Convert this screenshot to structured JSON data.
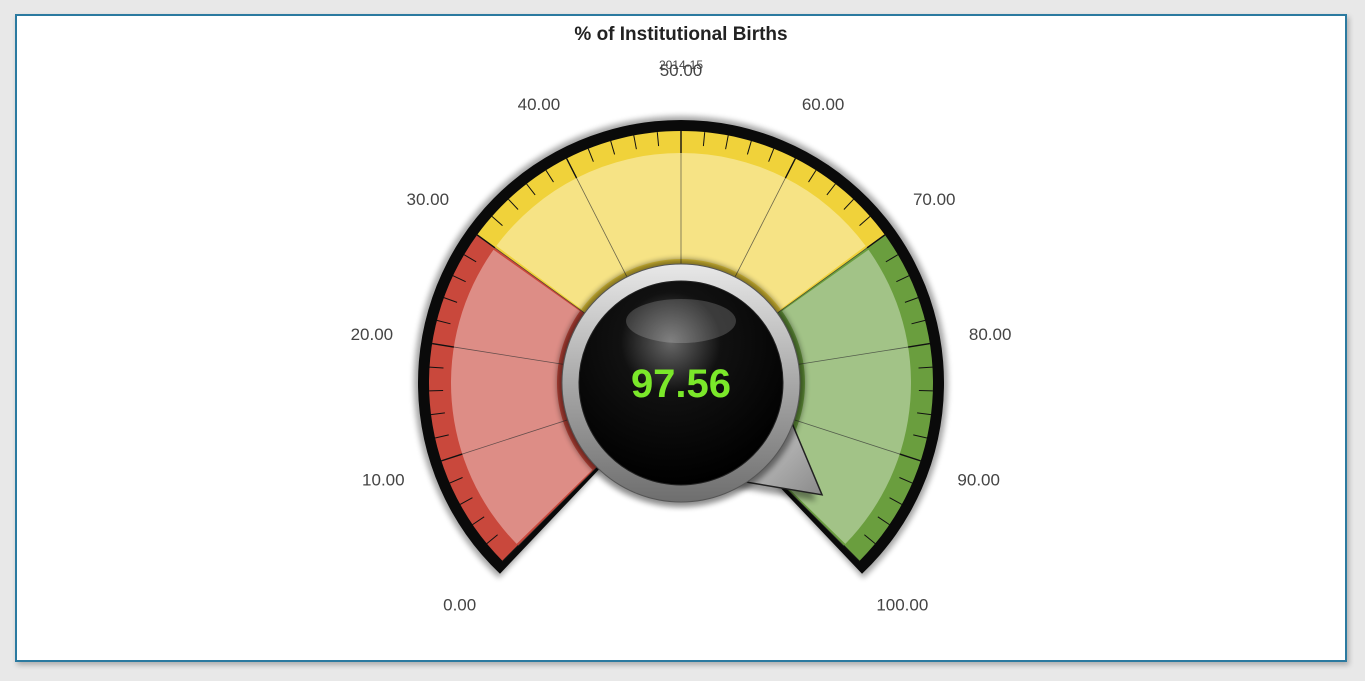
{
  "header": {
    "title": "% of Institutional Births",
    "subtitle": "2014-15"
  },
  "chart_data": {
    "type": "gauge",
    "title": "% of Institutional Births",
    "subtitle": "2014-15",
    "value": 97.56,
    "value_label": "97.56",
    "min": 0,
    "max": 100,
    "tick_labels": [
      "0.00",
      "10.00",
      "20.00",
      "30.00",
      "40.00",
      "50.00",
      "60.00",
      "70.00",
      "80.00",
      "90.00",
      "100.00"
    ],
    "ranges": [
      {
        "from": 0,
        "to": 30,
        "color": "#c9483c"
      },
      {
        "from": 30,
        "to": 70,
        "color": "#f0d23a"
      },
      {
        "from": 70,
        "to": 100,
        "color": "#6a9e3e"
      }
    ],
    "value_color": "#7be82a"
  }
}
